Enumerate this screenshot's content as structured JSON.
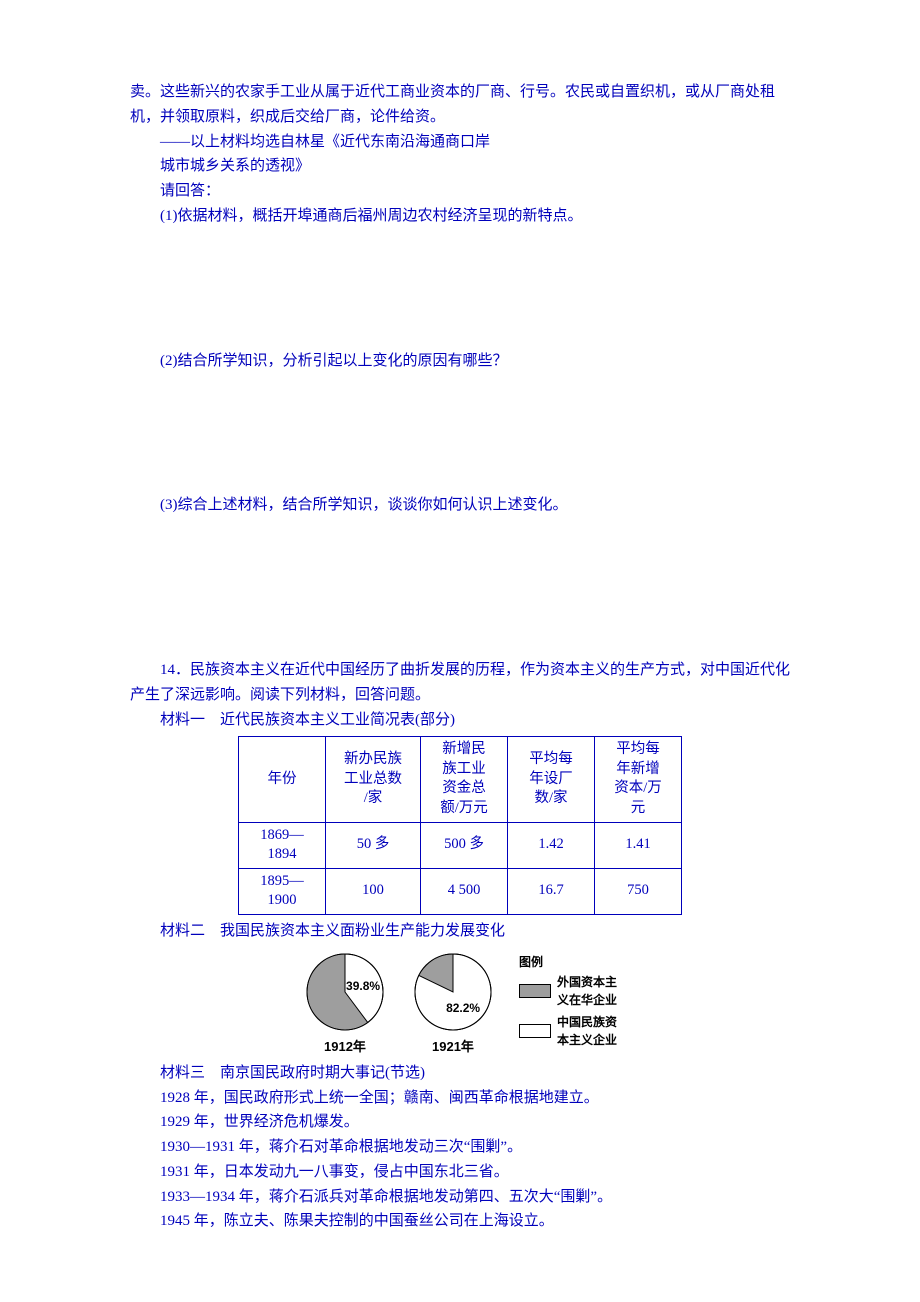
{
  "intro": {
    "line1": "卖。这些新兴的农家手工业从属于近代工商业资本的厂商、行号。农民或自置织机，或从厂商处租机，并领取原料，织成后交给厂商，论件给资。",
    "source1": "——以上材料均选自林星《近代东南沿海通商口岸",
    "source2": "城市城乡关系的透视》",
    "prompt": "请回答：",
    "q1": "(1)依据材料，概括开埠通商后福州周边农村经济呈现的新特点。",
    "q2": "(2)结合所学知识，分析引起以上变化的原因有哪些？",
    "q3": "(3)综合上述材料，结合所学知识，谈谈你如何认识上述变化。"
  },
  "q14": {
    "stem": "14．民族资本主义在近代中国经历了曲折发展的历程，作为资本主义的生产方式，对中国近代化产生了深远影响。阅读下列材料，回答问题。",
    "mat1_title": "材料一　近代民族资本主义工业简况表(部分)",
    "table": {
      "headers": [
        "年份",
        "新办民族\n工业总数\n/家",
        "新增民\n族工业\n资金总\n额/万元",
        "平均每\n年设厂\n数/家",
        "平均每\n年新增\n资本/万\n元"
      ],
      "rows": [
        [
          "1869—\n1894",
          "50 多",
          "500 多",
          "1.42",
          "1.41"
        ],
        [
          "1895—\n1900",
          "100",
          "4 500",
          "16.7",
          "750"
        ]
      ],
      "col_widths": [
        "70px",
        "78px",
        "70px",
        "70px",
        "70px"
      ]
    },
    "mat2_title": "材料二　我国民族资本主义面粉业生产能力发展变化",
    "pies": {
      "pie1": {
        "year": "1912年",
        "white_pct": 39.8,
        "label": "39.8%"
      },
      "pie2": {
        "year": "1921年",
        "white_pct": 82.2,
        "label": "82.2%"
      },
      "colors": {
        "gray": "#9e9e9e",
        "white": "#ffffff",
        "stroke": "#000000",
        "text": "#000000"
      },
      "radius": 38,
      "font_size": 12,
      "legend_title": "图例",
      "legend_items": [
        {
          "fill": "#9e9e9e",
          "label1": "外国资本主",
          "label2": "义在华企业"
        },
        {
          "fill": "#ffffff",
          "label1": "中国民族资",
          "label2": "本主义企业"
        }
      ]
    },
    "mat3_title": "材料三　南京国民政府时期大事记(节选)",
    "events": [
      "1928 年，国民政府形式上统一全国；赣南、闽西革命根据地建立。",
      "1929 年，世界经济危机爆发。",
      "1930—1931 年，蒋介石对革命根据地发动三次“围剿”。",
      "1931 年，日本发动九一八事变，侵占中国东北三省。",
      "1933—1934 年，蒋介石派兵对革命根据地发动第四、五次大“围剿”。",
      "1945 年，陈立夫、陈果夫控制的中国蚕丝公司在上海设立。"
    ]
  }
}
